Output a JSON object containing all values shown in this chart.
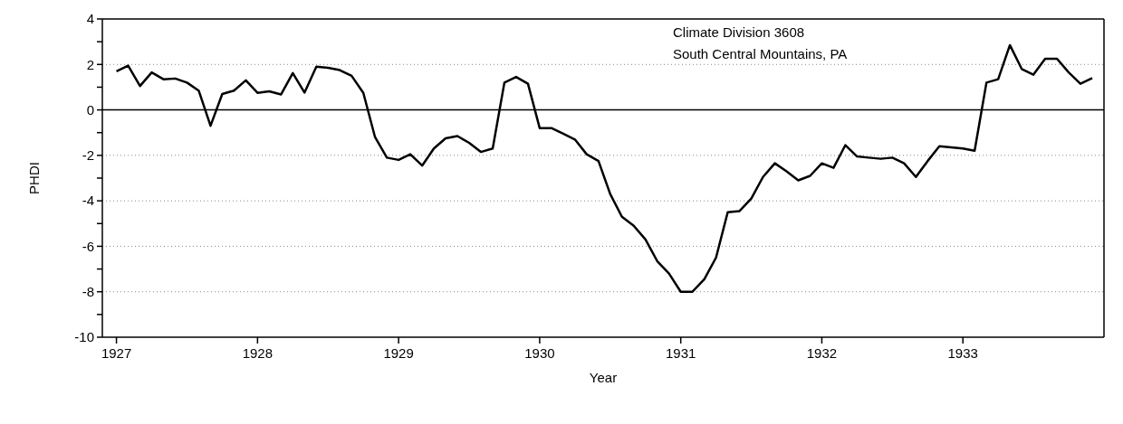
{
  "chart_data": {
    "type": "line",
    "xlabel": "Year",
    "ylabel": "PHDI",
    "annotations": [
      "Climate Division 3608",
      "South Central Mountains, PA"
    ],
    "x": [
      1927.0,
      1927.083,
      1927.167,
      1927.25,
      1927.333,
      1927.417,
      1927.5,
      1927.583,
      1927.667,
      1927.75,
      1927.833,
      1927.917,
      1928.0,
      1928.083,
      1928.167,
      1928.25,
      1928.333,
      1928.417,
      1928.5,
      1928.583,
      1928.667,
      1928.75,
      1928.833,
      1928.917,
      1929.0,
      1929.083,
      1929.167,
      1929.25,
      1929.333,
      1929.417,
      1929.5,
      1929.583,
      1929.667,
      1929.75,
      1929.833,
      1929.917,
      1930.0,
      1930.083,
      1930.167,
      1930.25,
      1930.333,
      1930.417,
      1930.5,
      1930.583,
      1930.667,
      1930.75,
      1930.833,
      1930.917,
      1931.0,
      1931.083,
      1931.167,
      1931.25,
      1931.333,
      1931.417,
      1931.5,
      1931.583,
      1931.667,
      1931.75,
      1931.833,
      1931.917,
      1932.0,
      1932.083,
      1932.167,
      1932.25,
      1932.333,
      1932.417,
      1932.5,
      1932.583,
      1932.667,
      1932.75,
      1932.833,
      1932.917,
      1933.0,
      1933.083,
      1933.167,
      1933.25,
      1933.333,
      1933.417,
      1933.5,
      1933.583,
      1933.667,
      1933.75,
      1933.833,
      1933.917
    ],
    "series": [
      {
        "color": "#000000",
        "values": [
          1.7,
          1.95,
          1.05,
          1.65,
          1.35,
          1.38,
          1.2,
          0.85,
          -0.7,
          0.7,
          0.85,
          1.3,
          0.75,
          0.82,
          0.68,
          1.62,
          0.76,
          1.9,
          1.85,
          1.75,
          1.5,
          0.75,
          -1.2,
          -2.1,
          -2.2,
          -1.95,
          -2.45,
          -1.7,
          -1.25,
          -1.15,
          -1.45,
          -1.85,
          -1.7,
          1.2,
          1.45,
          1.15,
          -0.8,
          -0.8,
          -1.05,
          -1.3,
          -1.95,
          -2.25,
          -3.7,
          -4.7,
          -5.1,
          -5.7,
          -6.65,
          -7.2,
          -8,
          -8,
          -7.45,
          -6.5,
          -4.5,
          -4.45,
          -3.9,
          -2.95,
          -2.35,
          -2.7,
          -3.1,
          -2.9,
          -2.35,
          -2.55,
          -1.55,
          -2.05,
          -2.1,
          -2.15,
          -2.1,
          -2.35,
          -2.95,
          -2.25,
          -1.6,
          -1.65,
          -1.7,
          -1.8,
          1.2,
          1.35,
          2.85,
          1.8,
          1.55,
          2.25,
          2.25,
          1.65,
          1.15,
          1.4
        ]
      }
    ],
    "xlim": [
      1926.9,
      1934.0
    ],
    "xticks": [
      1927,
      1928,
      1929,
      1930,
      1931,
      1932,
      1933
    ],
    "ylim": [
      -10,
      4
    ],
    "yticks": [
      -10,
      {
        "value": -9,
        "label": null
      },
      -8,
      {
        "value": -7,
        "label": null
      },
      -6,
      {
        "value": -5,
        "label": null
      },
      -4,
      {
        "value": -3,
        "label": null
      },
      -2,
      {
        "value": -1,
        "label": null
      },
      0,
      {
        "value": 1,
        "label": null
      },
      2,
      {
        "value": 3,
        "label": null
      },
      4
    ],
    "grid": "y",
    "legend": false,
    "marker": "none",
    "line_style": "solid",
    "ref_lines": [
      {
        "axis": "y",
        "value": 0,
        "color": "#000000",
        "line_style": "solid"
      }
    ]
  }
}
